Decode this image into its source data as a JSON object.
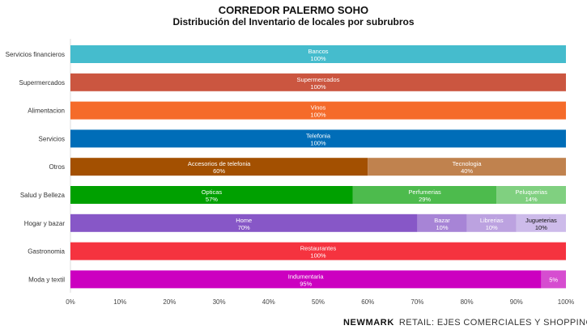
{
  "chart_data": {
    "type": "bar",
    "orientation": "horizontal",
    "stacked": true,
    "title": "CORREDOR PALERMO SOHO",
    "subtitle": "Distribución del Inventario de locales por subrubros",
    "xlim": [
      0,
      100
    ],
    "x_ticks": [
      "0%",
      "10%",
      "20%",
      "30%",
      "40%",
      "50%",
      "60%",
      "70%",
      "80%",
      "90%",
      "100%"
    ],
    "grid": false,
    "categories": [
      "Servicios financieros",
      "Supermercados",
      "Alimentacion",
      "Servicios",
      "Otros",
      "Salud y Belleza",
      "Hogar y bazar",
      "Gastronomia",
      "Moda y textil"
    ],
    "rows": [
      {
        "category": "Servicios financieros",
        "segments": [
          {
            "label": "Bancos",
            "value": 100,
            "text": "100%",
            "color": "#45BCCD",
            "text_color": "#ffffff"
          }
        ]
      },
      {
        "category": "Supermercados",
        "segments": [
          {
            "label": "Supermercados",
            "value": 100,
            "text": "100%",
            "color": "#CB5640",
            "text_color": "#ffffff"
          }
        ]
      },
      {
        "category": "Alimentacion",
        "segments": [
          {
            "label": "Vinos",
            "value": 100,
            "text": "100%",
            "color": "#F56B2A",
            "text_color": "#ffffff"
          }
        ]
      },
      {
        "category": "Servicios",
        "segments": [
          {
            "label": "Telefonia",
            "value": 100,
            "text": "100%",
            "color": "#006DB8",
            "text_color": "#ffffff"
          }
        ]
      },
      {
        "category": "Otros",
        "segments": [
          {
            "label": "Accesorios de telefonia",
            "value": 60,
            "text": "60%",
            "color": "#A35001",
            "text_color": "#ffffff"
          },
          {
            "label": "Tecnologia",
            "value": 40,
            "text": "40%",
            "color": "#C0824E",
            "text_color": "#ffffff"
          }
        ]
      },
      {
        "category": "Salud y Belleza",
        "segments": [
          {
            "label": "Opticas",
            "value": 57,
            "text": "57%",
            "color": "#00A000",
            "text_color": "#ffffff"
          },
          {
            "label": "Perfumerias",
            "value": 29,
            "text": "29%",
            "color": "#4DBB4D",
            "text_color": "#ffffff"
          },
          {
            "label": "Peluquerias",
            "value": 14,
            "text": "14%",
            "color": "#80D080",
            "text_color": "#ffffff"
          }
        ]
      },
      {
        "category": "Hogar y bazar",
        "segments": [
          {
            "label": "Home",
            "value": 70,
            "text": "70%",
            "color": "#8757C7",
            "text_color": "#ffffff"
          },
          {
            "label": "Bazar",
            "value": 10,
            "text": "10%",
            "color": "#A784D6",
            "text_color": "#ffffff"
          },
          {
            "label": "Librerias",
            "value": 10,
            "text": "10%",
            "color": "#BCA2E0",
            "text_color": "#ffffff"
          },
          {
            "label": "Jugueterias",
            "value": 10,
            "text": "10%",
            "color": "#CDBBEA",
            "text_color": "#111111"
          }
        ]
      },
      {
        "category": "Gastronomia",
        "segments": [
          {
            "label": "Restaurantes",
            "value": 100,
            "text": "100%",
            "color": "#F5333F",
            "text_color": "#ffffff"
          }
        ]
      },
      {
        "category": "Moda y textil",
        "segments": [
          {
            "label": "Indumentaria",
            "value": 95,
            "text": "95%",
            "color": "#CC00C0",
            "text_color": "#ffffff"
          },
          {
            "label": "",
            "value": 5,
            "text": "5%",
            "color": "#D64DD0",
            "text_color": "#ffffff"
          }
        ]
      }
    ]
  },
  "footer": {
    "brand": "NEWMARK",
    "text": "RETAIL: EJES COMERCIALES Y SHOPPINGS"
  }
}
